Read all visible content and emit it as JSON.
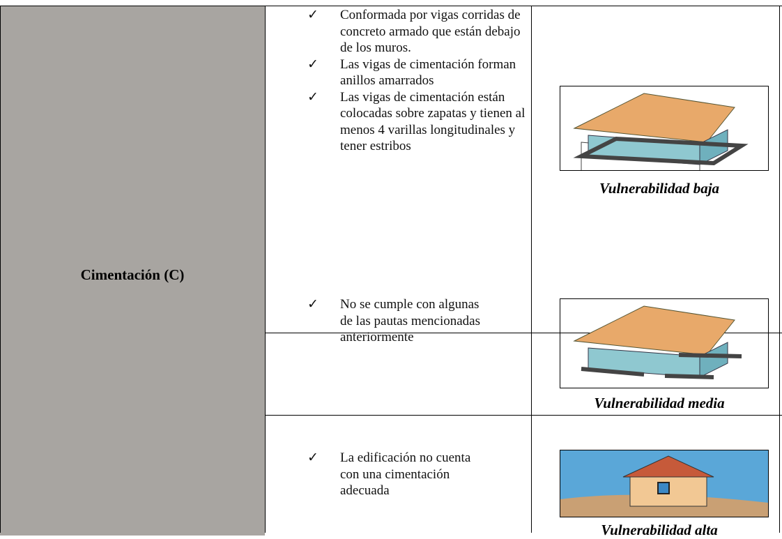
{
  "table": {
    "header_cell": "Cimentación (C)",
    "rows": [
      {
        "items": [
          "Conformada por vigas corridas de concreto armado que están debajo de los muros.",
          "Las vigas de cimentación forman anillos amarrados",
          "Las vigas de cimentación están colocadas sobre zapatas y tienen al menos 4 varillas longitudinales y tener estribos"
        ],
        "caption": "Vulnerabilidad baja"
      },
      {
        "items": [
          "No se cumple con algunas de las pautas mencionadas anteriormente"
        ],
        "caption": "Vulnerabilidad media"
      },
      {
        "items": [
          "La edificación no cuenta con una cimentación adecuada"
        ],
        "caption": "Vulnerabilidad alta"
      }
    ]
  }
}
